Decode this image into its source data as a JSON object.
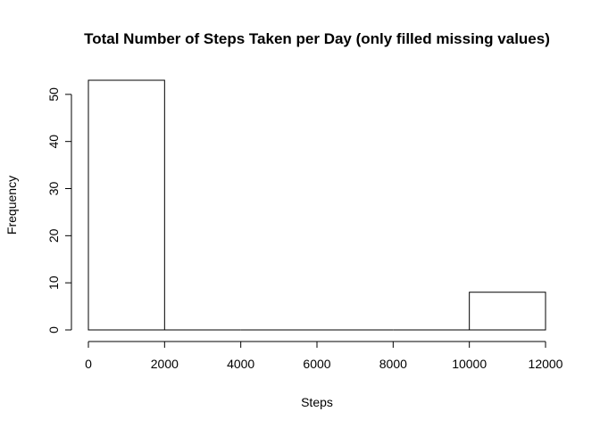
{
  "chart_data": {
    "type": "bar",
    "title": "Total Number of Steps Taken per Day (only filled missing values)",
    "xlabel": "Steps",
    "ylabel": "Frequency",
    "bins": [
      {
        "x0": 0,
        "x1": 2000,
        "count": 53
      },
      {
        "x0": 2000,
        "x1": 4000,
        "count": 0
      },
      {
        "x0": 4000,
        "x1": 6000,
        "count": 0
      },
      {
        "x0": 6000,
        "x1": 8000,
        "count": 0
      },
      {
        "x0": 8000,
        "x1": 10000,
        "count": 0
      },
      {
        "x0": 10000,
        "x1": 12000,
        "count": 8
      }
    ],
    "xlim": [
      0,
      12000
    ],
    "ylim": [
      0,
      53
    ],
    "x_ticks": [
      0,
      2000,
      4000,
      6000,
      8000,
      10000,
      12000
    ],
    "y_ticks": [
      0,
      10,
      20,
      30,
      40,
      50
    ],
    "grid": false,
    "legend": "none"
  }
}
